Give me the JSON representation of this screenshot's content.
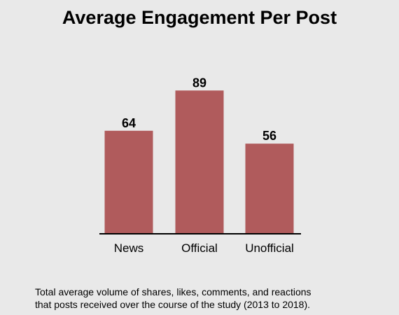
{
  "title": "Average Engagement Per Post",
  "caption": {
    "line1": "Total average volume of shares, likes, comments, and reactions",
    "line2": "that posts received over the course of the study (2013 to 2018)."
  },
  "colors": {
    "bar": "#b05b5c",
    "background": "#e9e9e9",
    "axis": "#000000"
  },
  "chart_data": {
    "type": "bar",
    "title": "Average Engagement Per Post",
    "categories": [
      "News",
      "Official",
      "Unofficial"
    ],
    "values": [
      64,
      89,
      56
    ],
    "xlabel": "",
    "ylabel": "",
    "ylim": [
      0,
      100
    ],
    "grid": false,
    "data_labels": true
  }
}
